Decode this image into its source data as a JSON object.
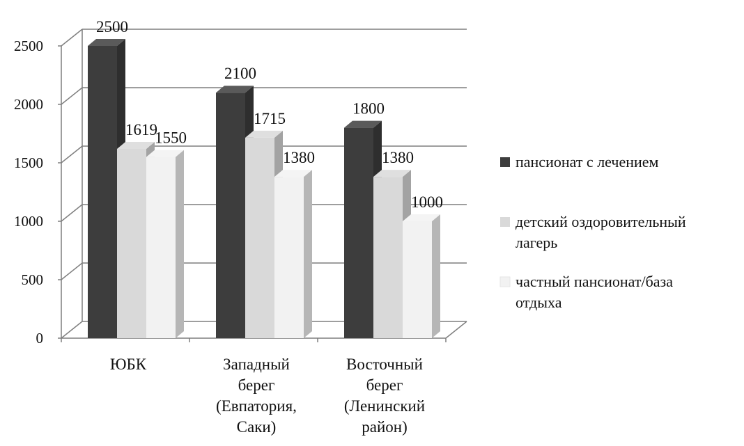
{
  "chart_data": {
    "type": "bar",
    "title": "",
    "xlabel": "",
    "ylabel": "",
    "ylim": [
      0,
      2500
    ],
    "yticks": [
      0,
      500,
      1000,
      1500,
      2000,
      2500
    ],
    "grid": true,
    "three_d": true,
    "legend_position": "right",
    "categories": [
      [
        "ЮБК"
      ],
      [
        "Западный",
        "берег",
        "(Евпатория,",
        "Саки)"
      ],
      [
        "Восточный",
        "берег",
        "(Ленинский",
        "район)"
      ]
    ],
    "series": [
      {
        "name": "пансионат с лечением",
        "legend_lines": [
          "пансионат с лечением"
        ],
        "values": [
          2500,
          2100,
          1800
        ],
        "color": "#3d3d3d"
      },
      {
        "name": "детский оздоровительный лагерь",
        "legend_lines": [
          "детский оздоровительный",
          "лагерь"
        ],
        "values": [
          1619,
          1715,
          1380
        ],
        "color": "#d9d9d9"
      },
      {
        "name": "частный пансионат/база отдыха",
        "legend_lines": [
          "частный пансионат/база",
          "отдыха"
        ],
        "values": [
          1550,
          1380,
          1000
        ],
        "color": "#f2f2f2"
      }
    ]
  }
}
